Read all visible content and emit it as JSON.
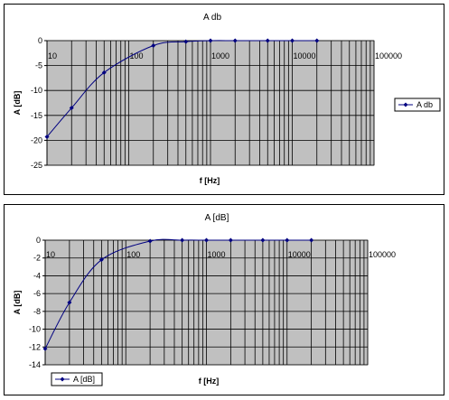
{
  "chart_data": [
    {
      "type": "line",
      "title": "A db",
      "xlabel": "f [Hz]",
      "ylabel": "A [dB]",
      "xscale": "log",
      "xlim": [
        10,
        100000
      ],
      "ylim": [
        -25,
        0
      ],
      "ytick_step": 5,
      "xtick_labels": [
        "10",
        "100",
        "1000",
        "10000",
        "100000"
      ],
      "ytick_labels": [
        "0",
        "-5",
        "-10",
        "-15",
        "-20",
        "-25"
      ],
      "grid": true,
      "legend": "right",
      "series": [
        {
          "name": "A db",
          "color": "#000080",
          "x": [
            10,
            20,
            50,
            200,
            500,
            1000,
            2000,
            5000,
            10000,
            20000
          ],
          "y": [
            -19.3,
            -13.5,
            -6.4,
            -1.0,
            -0.2,
            0,
            0,
            0,
            0,
            0
          ]
        }
      ]
    },
    {
      "type": "line",
      "title": "A [dB]",
      "xlabel": "f [Hz]",
      "ylabel": "A [dB]",
      "xscale": "log",
      "xlim": [
        10,
        100000
      ],
      "ylim": [
        -14,
        0
      ],
      "ytick_step": 2,
      "xtick_labels": [
        "10",
        "100",
        "1000",
        "10000",
        "100000"
      ],
      "ytick_labels": [
        "0",
        "-2",
        "-4",
        "-6",
        "-8",
        "-10",
        "-12",
        "-14"
      ],
      "grid": true,
      "legend": "bottom-left",
      "series": [
        {
          "name": "A [dB]",
          "color": "#000080",
          "x": [
            10,
            20,
            50,
            200,
            500,
            1000,
            2000,
            5000,
            10000,
            20000
          ],
          "y": [
            -12.2,
            -7.0,
            -2.2,
            -0.1,
            0,
            0,
            0,
            0,
            0,
            0
          ]
        }
      ]
    }
  ]
}
